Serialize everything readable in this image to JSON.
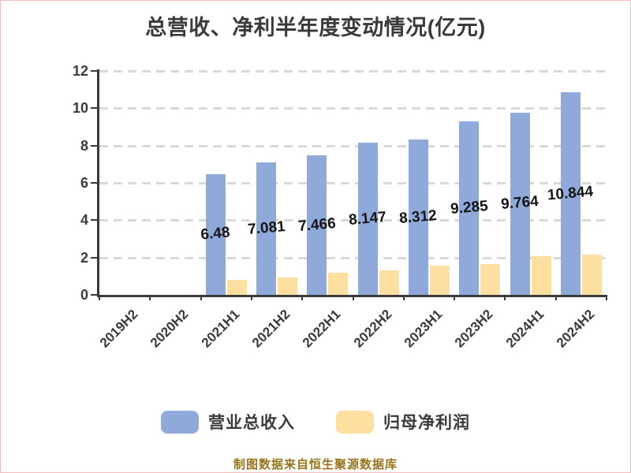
{
  "title": "总营收、净利半年度变动情况(亿元)",
  "footer_note": "制图数据来自恒生聚源数据库",
  "colors": {
    "revenue_bar": "#8fa9da",
    "profit_bar": "#fddf9f",
    "axis": "#3a3a3a",
    "gridline": "#d9d9d9",
    "title_text": "#3a3a3a",
    "value_label_text": "#151515",
    "footer_text": "#96761a",
    "page_border": "#f5bcbc"
  },
  "legend": [
    {
      "label": "营业总收入",
      "color": "#8fa9da"
    },
    {
      "label": "归母净利润",
      "color": "#fddf9f"
    }
  ],
  "chart_data": {
    "type": "bar",
    "title": "总营收、净利半年度变动情况(亿元)",
    "xlabel": "",
    "ylabel": "",
    "categories": [
      "2019H2",
      "2020H2",
      "2021H1",
      "2021H2",
      "2022H1",
      "2022H2",
      "2023H1",
      "2023H2",
      "2024H1",
      "2024H2"
    ],
    "series": [
      {
        "name": "营业总收入",
        "color": "#8fa9da",
        "values": [
          null,
          null,
          6.48,
          7.081,
          7.466,
          8.147,
          8.312,
          9.285,
          9.764,
          10.844
        ],
        "labels": [
          "",
          "",
          "6.48",
          "7.081",
          "7.466",
          "8.147",
          "8.312",
          "9.285",
          "9.764",
          "10.844"
        ]
      },
      {
        "name": "归母净利润",
        "color": "#fddf9f",
        "values": [
          null,
          null,
          0.8,
          0.95,
          1.2,
          1.3,
          1.55,
          1.65,
          2.05,
          2.15
        ],
        "labels": [
          "",
          "",
          "",
          "",
          "",
          "",
          "",
          "",
          "",
          ""
        ]
      }
    ],
    "ylim": [
      0,
      12
    ],
    "yticks": [
      0,
      2,
      4,
      6,
      8,
      10,
      12
    ],
    "grid": "horizontal-dashed",
    "x_tick_rotation": 45,
    "legend_position": "bottom"
  }
}
